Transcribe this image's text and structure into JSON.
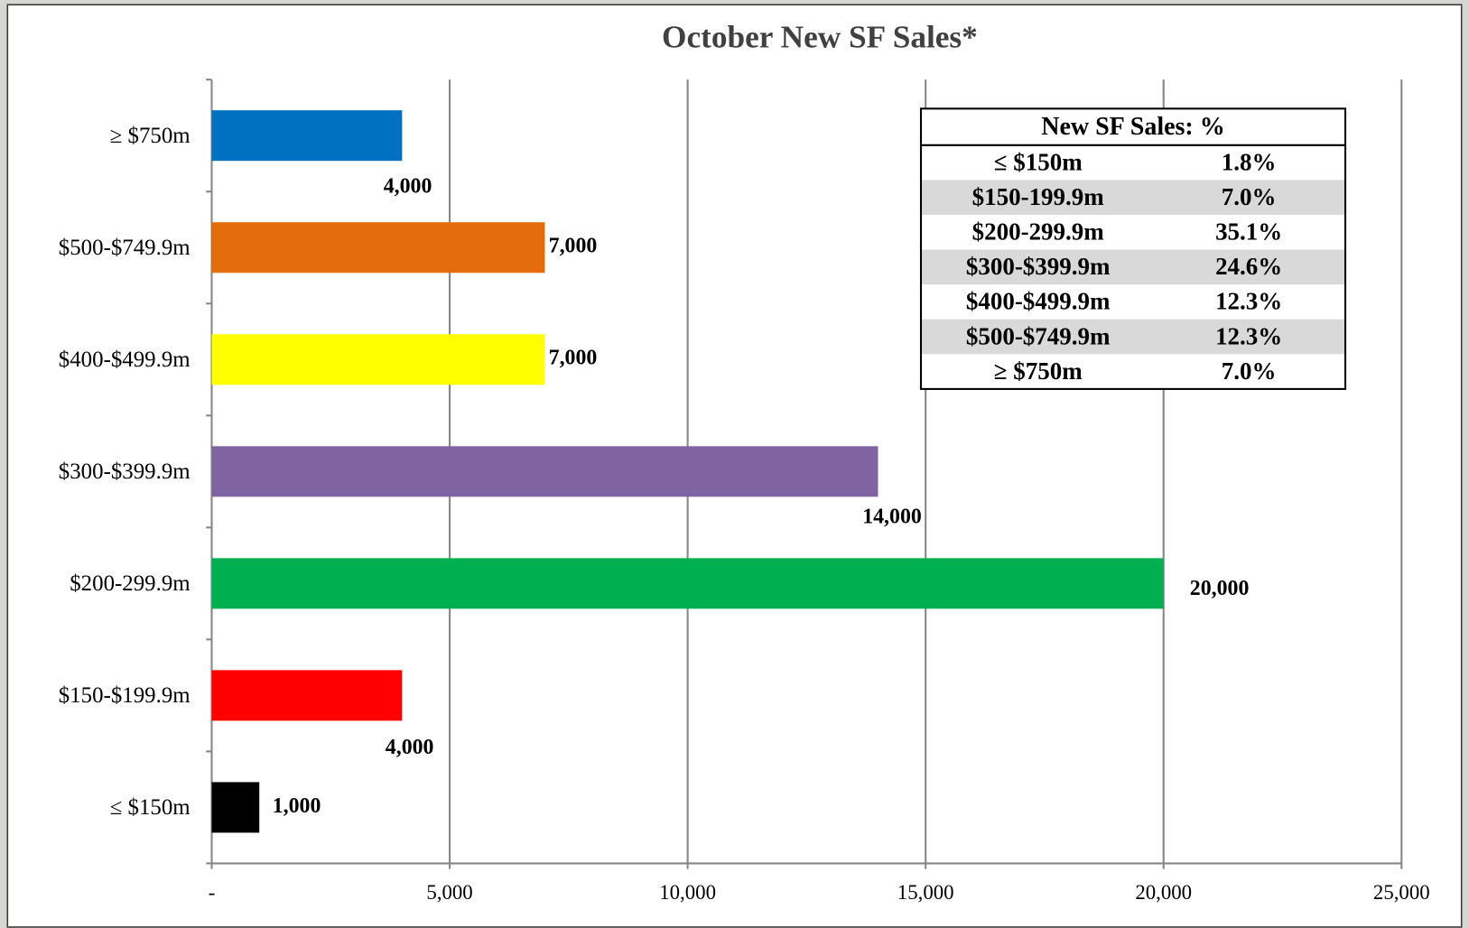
{
  "chart_data": {
    "type": "barh",
    "title": "October New SF Sales*",
    "categories": [
      "≤ $150m",
      "$150-$199.9m",
      "$200-299.9m",
      "$300-$399.9m",
      "$400-$499.9m",
      "$500-$749.9m",
      "≥ $750m"
    ],
    "values": [
      1000,
      4000,
      20000,
      14000,
      7000,
      7000,
      4000
    ],
    "value_labels": [
      "1,000",
      "4,000",
      "20,000",
      "14,000",
      "7,000",
      "7,000",
      "4,000"
    ],
    "colors": [
      "#000000",
      "#ff0000",
      "#00b050",
      "#8064a2",
      "#ffff00",
      "#e46c0a",
      "#0070c0"
    ],
    "xlim": [
      0,
      25000
    ],
    "xticks": [
      {
        "value": 0,
        "label": "-"
      },
      {
        "value": 5000,
        "label": "5,000"
      },
      {
        "value": 10000,
        "label": "10,000"
      },
      {
        "value": 15000,
        "label": "15,000"
      },
      {
        "value": 20000,
        "label": "20,000"
      },
      {
        "value": 25000,
        "label": "25,000"
      }
    ],
    "grid": true
  },
  "table": {
    "title": "New SF Sales: %",
    "rows": [
      [
        "≤ $150m",
        "1.8%"
      ],
      [
        "$150-199.9m",
        "7.0%"
      ],
      [
        "$200-299.9m",
        "35.1%"
      ],
      [
        "$300-$399.9m",
        "24.6%"
      ],
      [
        "$400-$499.9m",
        "12.3%"
      ],
      [
        "$500-$749.9m",
        "12.3%"
      ],
      [
        "≥ $750m",
        "7.0%"
      ]
    ]
  }
}
